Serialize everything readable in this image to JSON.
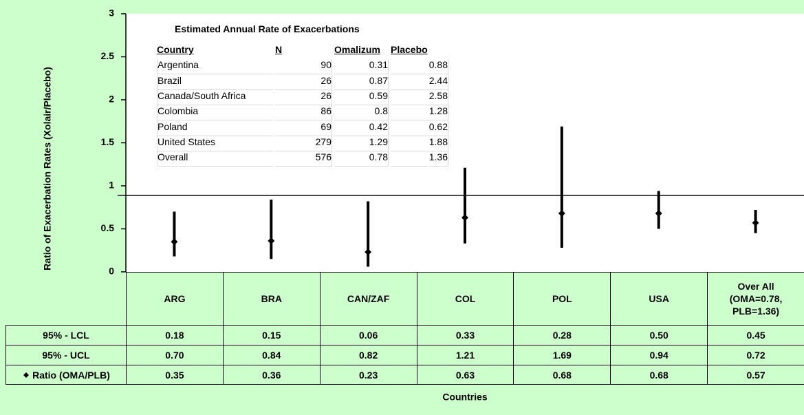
{
  "chart_data": {
    "type": "interval",
    "y_label": "Ratio of Exacerbation Rates (Xolair/Placebo)",
    "x_label": "Countries",
    "categories": [
      "ARG",
      "BRA",
      "CAN/ZAF",
      "COL",
      "POL",
      "USA",
      "Over All\n(OMA=0.78,\nPLB=1.36)"
    ],
    "series": [
      {
        "name": "95% - LCL",
        "color": "#000000",
        "values": [
          0.18,
          0.15,
          0.06,
          0.33,
          0.28,
          0.5,
          0.45
        ],
        "value_labels": [
          "0.18",
          "0.15",
          "0.06",
          "0.33",
          "0.28",
          "0.50",
          "0.45"
        ]
      },
      {
        "name": "95% - UCL",
        "color": "#000000",
        "values": [
          0.7,
          0.84,
          0.82,
          1.21,
          1.69,
          0.94,
          0.72
        ],
        "value_labels": [
          "0.70",
          "0.84",
          "0.82",
          "1.21",
          "1.69",
          "0.94",
          "0.72"
        ]
      },
      {
        "name": "Ratio (OMA/PLB)",
        "color": "#000000",
        "values": [
          0.35,
          0.36,
          0.23,
          0.63,
          0.68,
          0.68,
          0.57
        ]
      }
    ],
    "ylim": [
      0,
      3
    ],
    "yticks": [
      0,
      0.5,
      1,
      1.5,
      2,
      2.5,
      3
    ],
    "reference_line": 0.89,
    "inset_table": {
      "title": "Estimated Annual Rate of Exacerbations",
      "columns": [
        "Country",
        "N",
        "Omalizum",
        "Placebo"
      ],
      "rows": [
        [
          "Argentina",
          90,
          0.31,
          0.88
        ],
        [
          "Brazil",
          26,
          0.87,
          2.44
        ],
        [
          "Canada/South Africa",
          26,
          0.59,
          2.58
        ],
        [
          "Colombia",
          86,
          0.8,
          1.28
        ],
        [
          "Poland",
          69,
          0.42,
          0.62
        ],
        [
          "United States",
          279,
          1.29,
          1.88
        ],
        [
          "Overall",
          576,
          0.78,
          1.36
        ]
      ]
    }
  }
}
